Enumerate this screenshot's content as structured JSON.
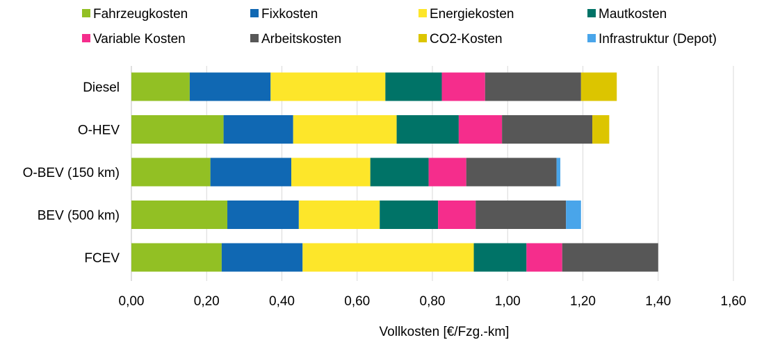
{
  "chart_data": {
    "type": "bar",
    "orientation": "horizontal",
    "stacked": true,
    "categories": [
      "Diesel",
      "O-HEV",
      "O-BEV (150 km)",
      "BEV (500 km)",
      "FCEV"
    ],
    "series": [
      {
        "name": "Fahrzeugkosten",
        "color": "#92c024",
        "values": [
          0.155,
          0.245,
          0.21,
          0.255,
          0.24
        ]
      },
      {
        "name": "Fixkosten",
        "color": "#1068b3",
        "values": [
          0.215,
          0.185,
          0.215,
          0.19,
          0.215
        ]
      },
      {
        "name": "Energiekosten",
        "color": "#fde62a",
        "values": [
          0.305,
          0.275,
          0.21,
          0.215,
          0.455
        ]
      },
      {
        "name": "Mautkosten",
        "color": "#007367",
        "values": [
          0.15,
          0.165,
          0.155,
          0.155,
          0.14
        ]
      },
      {
        "name": "Variable Kosten",
        "color": "#f52d8c",
        "values": [
          0.115,
          0.115,
          0.1,
          0.1,
          0.095
        ]
      },
      {
        "name": "Arbeitskosten",
        "color": "#575757",
        "values": [
          0.255,
          0.24,
          0.24,
          0.24,
          0.255
        ]
      },
      {
        "name": "CO2-Kosten",
        "color": "#dcc500",
        "values": [
          0.095,
          0.045,
          0.0,
          0.0,
          0.0
        ]
      },
      {
        "name": "Infrastruktur (Depot)",
        "color": "#49a5ea",
        "values": [
          0.0,
          0.0,
          0.01,
          0.04,
          0.0
        ]
      }
    ],
    "xlim": [
      0,
      1.6
    ],
    "ticks": [
      "0,00",
      "0,20",
      "0,40",
      "0,60",
      "0,80",
      "1,00",
      "1,20",
      "1,40",
      "1,60"
    ],
    "xlabel": "Vollkosten [€/Fzg.-km]",
    "ylabel": "",
    "title": "",
    "grid": "vertical",
    "legend_position": "top"
  }
}
